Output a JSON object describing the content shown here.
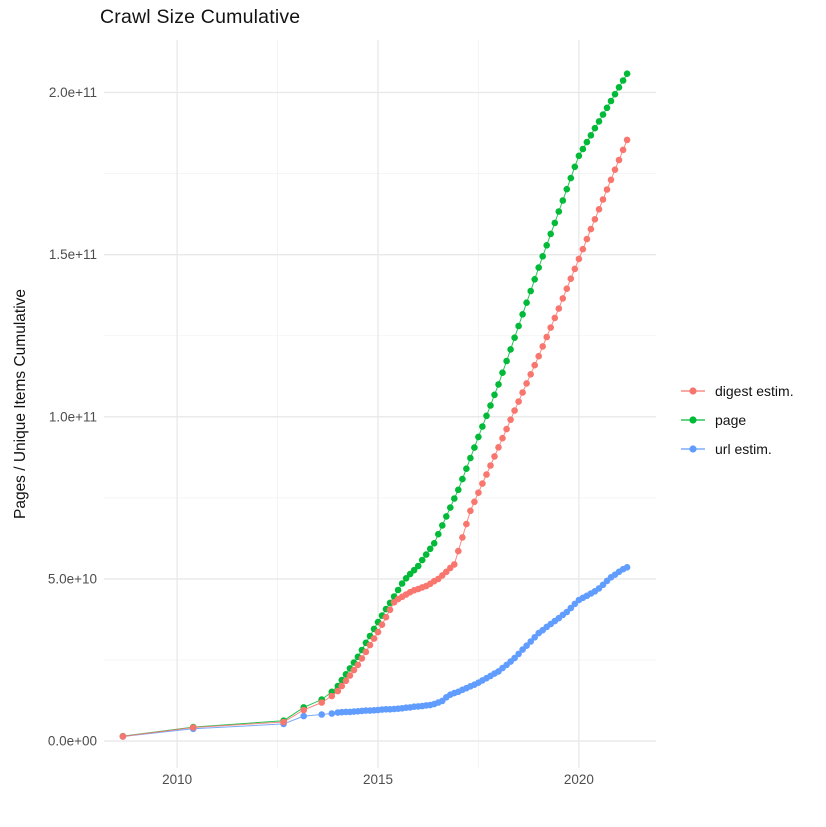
{
  "title": "Crawl Size Cumulative",
  "chart_data": {
    "type": "scatter",
    "title": "Crawl Size Cumulative",
    "xlabel": "",
    "ylabel": "Pages / Unique Items Cumulative",
    "value_scale": 1000000000.0,
    "xlim": [
      2008.18,
      2021.92
    ],
    "ylim_e9": [
      -8.3,
      216.2
    ],
    "grid": true,
    "legend_position": "right",
    "x_ticks": {
      "major": [
        2010,
        2015,
        2020
      ],
      "labels": [
        "2010",
        "2015",
        "2020"
      ],
      "minor": [
        2012.5,
        2017.5
      ]
    },
    "y_ticks": {
      "values_e9": [
        0,
        50,
        100,
        150,
        200
      ],
      "labels": [
        "0.0e+00",
        "5.0e+10",
        "1.0e+11",
        "1.5e+11",
        "2.0e+11"
      ],
      "minor_e9": [
        25,
        75,
        125,
        175
      ]
    },
    "series": [
      {
        "name": "digest estim.",
        "color": "#F8766D",
        "points": [
          [
            2008.65,
            1.45
          ],
          [
            2010.4,
            4.2
          ],
          [
            2012.65,
            5.9
          ],
          [
            2013.15,
            9.6
          ],
          [
            2013.6,
            11.9
          ],
          [
            2013.85,
            13.9
          ],
          [
            2014.0,
            15.4
          ],
          [
            2014.1,
            17.0
          ],
          [
            2014.2,
            18.6
          ],
          [
            2014.3,
            20.2
          ],
          [
            2014.4,
            21.9
          ],
          [
            2014.5,
            23.5
          ],
          [
            2014.6,
            25.5
          ],
          [
            2014.7,
            27.5
          ],
          [
            2014.8,
            29.6
          ],
          [
            2014.9,
            31.6
          ],
          [
            2015.0,
            33.6
          ],
          [
            2015.1,
            35.9
          ],
          [
            2015.2,
            38.2
          ],
          [
            2015.3,
            40.5
          ],
          [
            2015.4,
            42.8
          ],
          [
            2015.5,
            43.8
          ],
          [
            2015.6,
            44.5
          ],
          [
            2015.7,
            45.2
          ],
          [
            2015.8,
            45.9
          ],
          [
            2015.9,
            46.5
          ],
          [
            2016.0,
            46.9
          ],
          [
            2016.1,
            47.4
          ],
          [
            2016.2,
            47.8
          ],
          [
            2016.3,
            48.5
          ],
          [
            2016.4,
            49.3
          ],
          [
            2016.5,
            50.0
          ],
          [
            2016.6,
            51.1
          ],
          [
            2016.7,
            52.2
          ],
          [
            2016.8,
            53.4
          ],
          [
            2016.9,
            54.5
          ],
          [
            2017.0,
            58.6
          ],
          [
            2017.1,
            62.8
          ],
          [
            2017.2,
            66.9
          ],
          [
            2017.3,
            71.0
          ],
          [
            2017.4,
            73.8
          ],
          [
            2017.5,
            76.6
          ],
          [
            2017.6,
            79.4
          ],
          [
            2017.7,
            82.2
          ],
          [
            2017.8,
            85.0
          ],
          [
            2017.9,
            87.8
          ],
          [
            2018.0,
            90.6
          ],
          [
            2018.1,
            93.4
          ],
          [
            2018.2,
            96.2
          ],
          [
            2018.3,
            99.1
          ],
          [
            2018.4,
            101.9
          ],
          [
            2018.5,
            104.7
          ],
          [
            2018.6,
            107.5
          ],
          [
            2018.7,
            110.3
          ],
          [
            2018.8,
            113.1
          ],
          [
            2018.9,
            115.9
          ],
          [
            2019.0,
            118.7
          ],
          [
            2019.1,
            121.7
          ],
          [
            2019.2,
            124.6
          ],
          [
            2019.3,
            127.5
          ],
          [
            2019.4,
            130.5
          ],
          [
            2019.5,
            133.4
          ],
          [
            2019.6,
            136.5
          ],
          [
            2019.7,
            139.5
          ],
          [
            2019.8,
            142.6
          ],
          [
            2019.9,
            145.6
          ],
          [
            2020.0,
            148.7
          ],
          [
            2020.1,
            151.7
          ],
          [
            2020.2,
            154.8
          ],
          [
            2020.3,
            157.9
          ],
          [
            2020.4,
            160.9
          ],
          [
            2020.5,
            164.0
          ],
          [
            2020.6,
            167.0
          ],
          [
            2020.7,
            170.1
          ],
          [
            2020.8,
            173.1
          ],
          [
            2020.9,
            176.2
          ],
          [
            2021.0,
            179.2
          ],
          [
            2021.1,
            182.3
          ],
          [
            2021.2,
            185.4
          ]
        ]
      },
      {
        "name": "page",
        "color": "#00BA38",
        "points": [
          [
            2008.65,
            1.5
          ],
          [
            2010.4,
            4.3
          ],
          [
            2012.65,
            6.3
          ],
          [
            2013.15,
            10.4
          ],
          [
            2013.6,
            12.8
          ],
          [
            2013.85,
            15.2
          ],
          [
            2014.0,
            17.0
          ],
          [
            2014.1,
            18.8
          ],
          [
            2014.2,
            20.6
          ],
          [
            2014.3,
            22.4
          ],
          [
            2014.4,
            24.2
          ],
          [
            2014.5,
            26.0
          ],
          [
            2014.6,
            28.1
          ],
          [
            2014.7,
            30.3
          ],
          [
            2014.8,
            32.4
          ],
          [
            2014.9,
            34.6
          ],
          [
            2015.0,
            36.7
          ],
          [
            2015.1,
            38.7
          ],
          [
            2015.2,
            40.7
          ],
          [
            2015.3,
            42.6
          ],
          [
            2015.4,
            44.6
          ],
          [
            2015.5,
            46.6
          ],
          [
            2015.6,
            48.6
          ],
          [
            2015.7,
            50.2
          ],
          [
            2015.8,
            51.5
          ],
          [
            2015.9,
            52.7
          ],
          [
            2016.0,
            54.0
          ],
          [
            2016.1,
            55.8
          ],
          [
            2016.2,
            57.5
          ],
          [
            2016.3,
            59.3
          ],
          [
            2016.4,
            61.0
          ],
          [
            2016.5,
            63.8
          ],
          [
            2016.6,
            66.5
          ],
          [
            2016.7,
            69.3
          ],
          [
            2016.8,
            72.0
          ],
          [
            2016.9,
            74.8
          ],
          [
            2017.0,
            77.5
          ],
          [
            2017.1,
            80.8
          ],
          [
            2017.2,
            84.0
          ],
          [
            2017.3,
            87.3
          ],
          [
            2017.4,
            90.5
          ],
          [
            2017.5,
            93.8
          ],
          [
            2017.6,
            97.0
          ],
          [
            2017.7,
            100.3
          ],
          [
            2017.8,
            103.5
          ],
          [
            2017.9,
            106.8
          ],
          [
            2018.0,
            110.0
          ],
          [
            2018.1,
            113.6
          ],
          [
            2018.2,
            117.2
          ],
          [
            2018.3,
            120.8
          ],
          [
            2018.4,
            124.4
          ],
          [
            2018.5,
            128.0
          ],
          [
            2018.6,
            131.6
          ],
          [
            2018.7,
            135.2
          ],
          [
            2018.8,
            138.8
          ],
          [
            2018.9,
            142.4
          ],
          [
            2019.0,
            146.0
          ],
          [
            2019.1,
            149.5
          ],
          [
            2019.2,
            152.9
          ],
          [
            2019.3,
            156.4
          ],
          [
            2019.4,
            159.8
          ],
          [
            2019.5,
            163.3
          ],
          [
            2019.6,
            166.7
          ],
          [
            2019.7,
            170.2
          ],
          [
            2019.8,
            173.6
          ],
          [
            2019.9,
            177.1
          ],
          [
            2020.0,
            180.5
          ],
          [
            2020.1,
            182.6
          ],
          [
            2020.2,
            184.7
          ],
          [
            2020.3,
            186.8
          ],
          [
            2020.4,
            189.0
          ],
          [
            2020.5,
            191.1
          ],
          [
            2020.6,
            193.2
          ],
          [
            2020.7,
            195.3
          ],
          [
            2020.8,
            197.4
          ],
          [
            2020.9,
            199.5
          ],
          [
            2021.0,
            201.6
          ],
          [
            2021.1,
            203.7
          ],
          [
            2021.2,
            205.8
          ]
        ]
      },
      {
        "name": "url estim.",
        "color": "#619CFF",
        "points": [
          [
            2008.65,
            1.4
          ],
          [
            2010.4,
            3.8
          ],
          [
            2012.65,
            5.3
          ],
          [
            2013.15,
            7.7
          ],
          [
            2013.6,
            8.2
          ],
          [
            2013.85,
            8.5
          ],
          [
            2014.0,
            8.8
          ],
          [
            2014.1,
            8.9
          ],
          [
            2014.2,
            9.0
          ],
          [
            2014.3,
            9.0
          ],
          [
            2014.4,
            9.1
          ],
          [
            2014.5,
            9.2
          ],
          [
            2014.6,
            9.3
          ],
          [
            2014.7,
            9.4
          ],
          [
            2014.8,
            9.4
          ],
          [
            2014.9,
            9.5
          ],
          [
            2015.0,
            9.6
          ],
          [
            2015.1,
            9.7
          ],
          [
            2015.2,
            9.8
          ],
          [
            2015.3,
            9.8
          ],
          [
            2015.4,
            9.9
          ],
          [
            2015.5,
            10.0
          ],
          [
            2015.6,
            10.1
          ],
          [
            2015.7,
            10.3
          ],
          [
            2015.8,
            10.4
          ],
          [
            2015.9,
            10.6
          ],
          [
            2016.0,
            10.7
          ],
          [
            2016.1,
            10.8
          ],
          [
            2016.2,
            11.0
          ],
          [
            2016.3,
            11.1
          ],
          [
            2016.4,
            11.4
          ],
          [
            2016.5,
            11.9
          ],
          [
            2016.6,
            12.4
          ],
          [
            2016.7,
            13.5
          ],
          [
            2016.8,
            14.3
          ],
          [
            2016.9,
            14.8
          ],
          [
            2017.0,
            15.2
          ],
          [
            2017.1,
            15.8
          ],
          [
            2017.2,
            16.3
          ],
          [
            2017.3,
            16.9
          ],
          [
            2017.4,
            17.4
          ],
          [
            2017.5,
            18.0
          ],
          [
            2017.6,
            18.7
          ],
          [
            2017.7,
            19.4
          ],
          [
            2017.8,
            20.1
          ],
          [
            2017.9,
            20.8
          ],
          [
            2018.0,
            21.5
          ],
          [
            2018.1,
            22.5
          ],
          [
            2018.2,
            23.5
          ],
          [
            2018.3,
            24.5
          ],
          [
            2018.4,
            25.6
          ],
          [
            2018.5,
            26.9
          ],
          [
            2018.6,
            28.2
          ],
          [
            2018.7,
            29.4
          ],
          [
            2018.8,
            30.7
          ],
          [
            2018.9,
            32.0
          ],
          [
            2019.0,
            33.3
          ],
          [
            2019.1,
            34.2
          ],
          [
            2019.2,
            35.2
          ],
          [
            2019.3,
            36.1
          ],
          [
            2019.4,
            37.0
          ],
          [
            2019.5,
            37.9
          ],
          [
            2019.6,
            38.9
          ],
          [
            2019.7,
            39.8
          ],
          [
            2019.8,
            41.0
          ],
          [
            2019.9,
            42.3
          ],
          [
            2020.0,
            43.5
          ],
          [
            2020.1,
            44.2
          ],
          [
            2020.2,
            44.8
          ],
          [
            2020.3,
            45.5
          ],
          [
            2020.4,
            46.2
          ],
          [
            2020.5,
            47.1
          ],
          [
            2020.6,
            48.2
          ],
          [
            2020.7,
            49.4
          ],
          [
            2020.8,
            50.5
          ],
          [
            2020.9,
            51.3
          ],
          [
            2021.0,
            52.2
          ],
          [
            2021.1,
            53.0
          ],
          [
            2021.2,
            53.6
          ]
        ]
      }
    ]
  },
  "legend": {
    "items": [
      {
        "label": "digest estim.",
        "color": "#F8766D"
      },
      {
        "label": "page",
        "color": "#00BA38"
      },
      {
        "label": "url estim.",
        "color": "#619CFF"
      }
    ]
  },
  "style": {
    "grid_major_color": "#E8E8E8",
    "grid_minor_color": "#F2F2F2",
    "tick_label_color": "#4D4D4D",
    "text_color": "#121212"
  }
}
